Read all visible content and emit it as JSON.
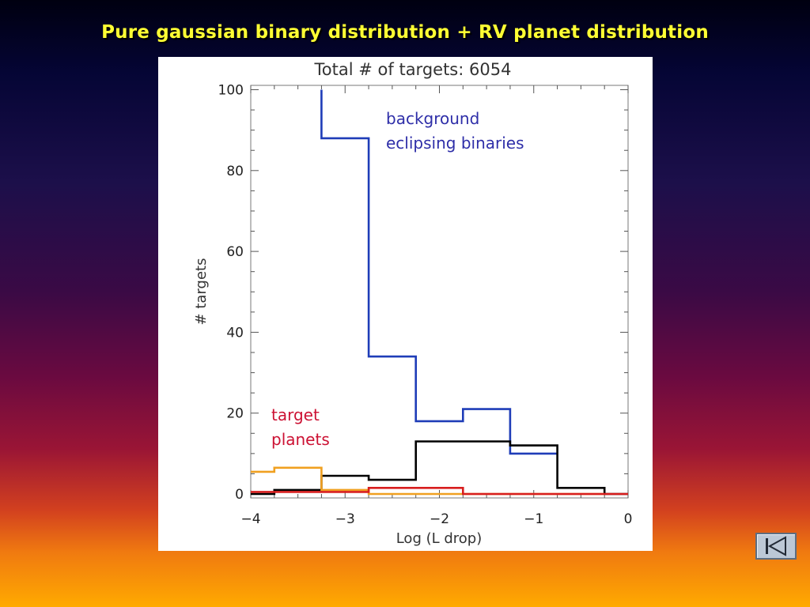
{
  "slide": {
    "title": "Pure gaussian binary distribution + RV planet distribution"
  },
  "nav": {
    "button_icon": "first-slide-icon"
  },
  "colors": {
    "title_text": "#ffff33",
    "eclipsing_binaries": "#1f3db8",
    "total": "#000000",
    "planets_red": "#d81e1e",
    "planets_orange": "#f0a020",
    "annotation_blue": "#2e2ea8",
    "annotation_red": "#cc1133"
  },
  "chart_data": {
    "type": "line",
    "step": true,
    "header": "Total # of targets:  6054",
    "xlabel": "Log (L drop)",
    "ylabel": "# targets",
    "xlim": [
      -4,
      0
    ],
    "ylim": [
      0,
      100
    ],
    "xticks": [
      -4,
      -3,
      -2,
      -1,
      0
    ],
    "xtick_labels": [
      "−4",
      "−3",
      "−2",
      "−1",
      "0"
    ],
    "yticks": [
      0,
      20,
      40,
      60,
      80,
      100
    ],
    "ytick_labels": [
      "0",
      "20",
      "40",
      "60",
      "80",
      "100"
    ],
    "grid": false,
    "annotations": [
      {
        "lines": [
          "background",
          "eclipsing binaries"
        ],
        "color_key": "annotation_blue"
      },
      {
        "lines": [
          "target",
          "planets"
        ],
        "color_key": "annotation_red"
      }
    ],
    "series": [
      {
        "color_key": "eclipsing_binaries",
        "x": [
          -3.25,
          -3.25,
          -2.75,
          -2.75,
          -2.25,
          -2.25,
          -1.75,
          -1.75,
          -1.25,
          -1.25,
          -0.75
        ],
        "y": [
          100,
          88,
          88,
          34,
          34,
          18,
          18,
          21,
          21,
          10,
          10
        ]
      },
      {
        "color_key": "total",
        "x": [
          -4.0,
          -3.75,
          -3.75,
          -3.25,
          -3.25,
          -2.75,
          -2.75,
          -2.25,
          -2.25,
          -1.75,
          -1.75,
          -1.25,
          -1.25,
          -0.75,
          -0.75,
          -0.25,
          -0.25,
          0.0
        ],
        "y": [
          0,
          0,
          1,
          1,
          4.5,
          4.5,
          3.5,
          3.5,
          13,
          13,
          13,
          13,
          12,
          12,
          1.5,
          1.5,
          0,
          0
        ]
      },
      {
        "color_key": "planets_orange",
        "x": [
          -4.0,
          -3.75,
          -3.75,
          -3.25,
          -3.25,
          -2.75,
          -2.75,
          -0.25
        ],
        "y": [
          5.5,
          5.5,
          6.5,
          6.5,
          1,
          1,
          0,
          0
        ]
      },
      {
        "color_key": "planets_red",
        "x": [
          -4.0,
          -3.75,
          -3.75,
          -2.75,
          -2.75,
          -1.75,
          -1.75,
          0.0
        ],
        "y": [
          0.5,
          0.5,
          0.5,
          0.5,
          1.5,
          1.5,
          0,
          0
        ]
      }
    ]
  }
}
